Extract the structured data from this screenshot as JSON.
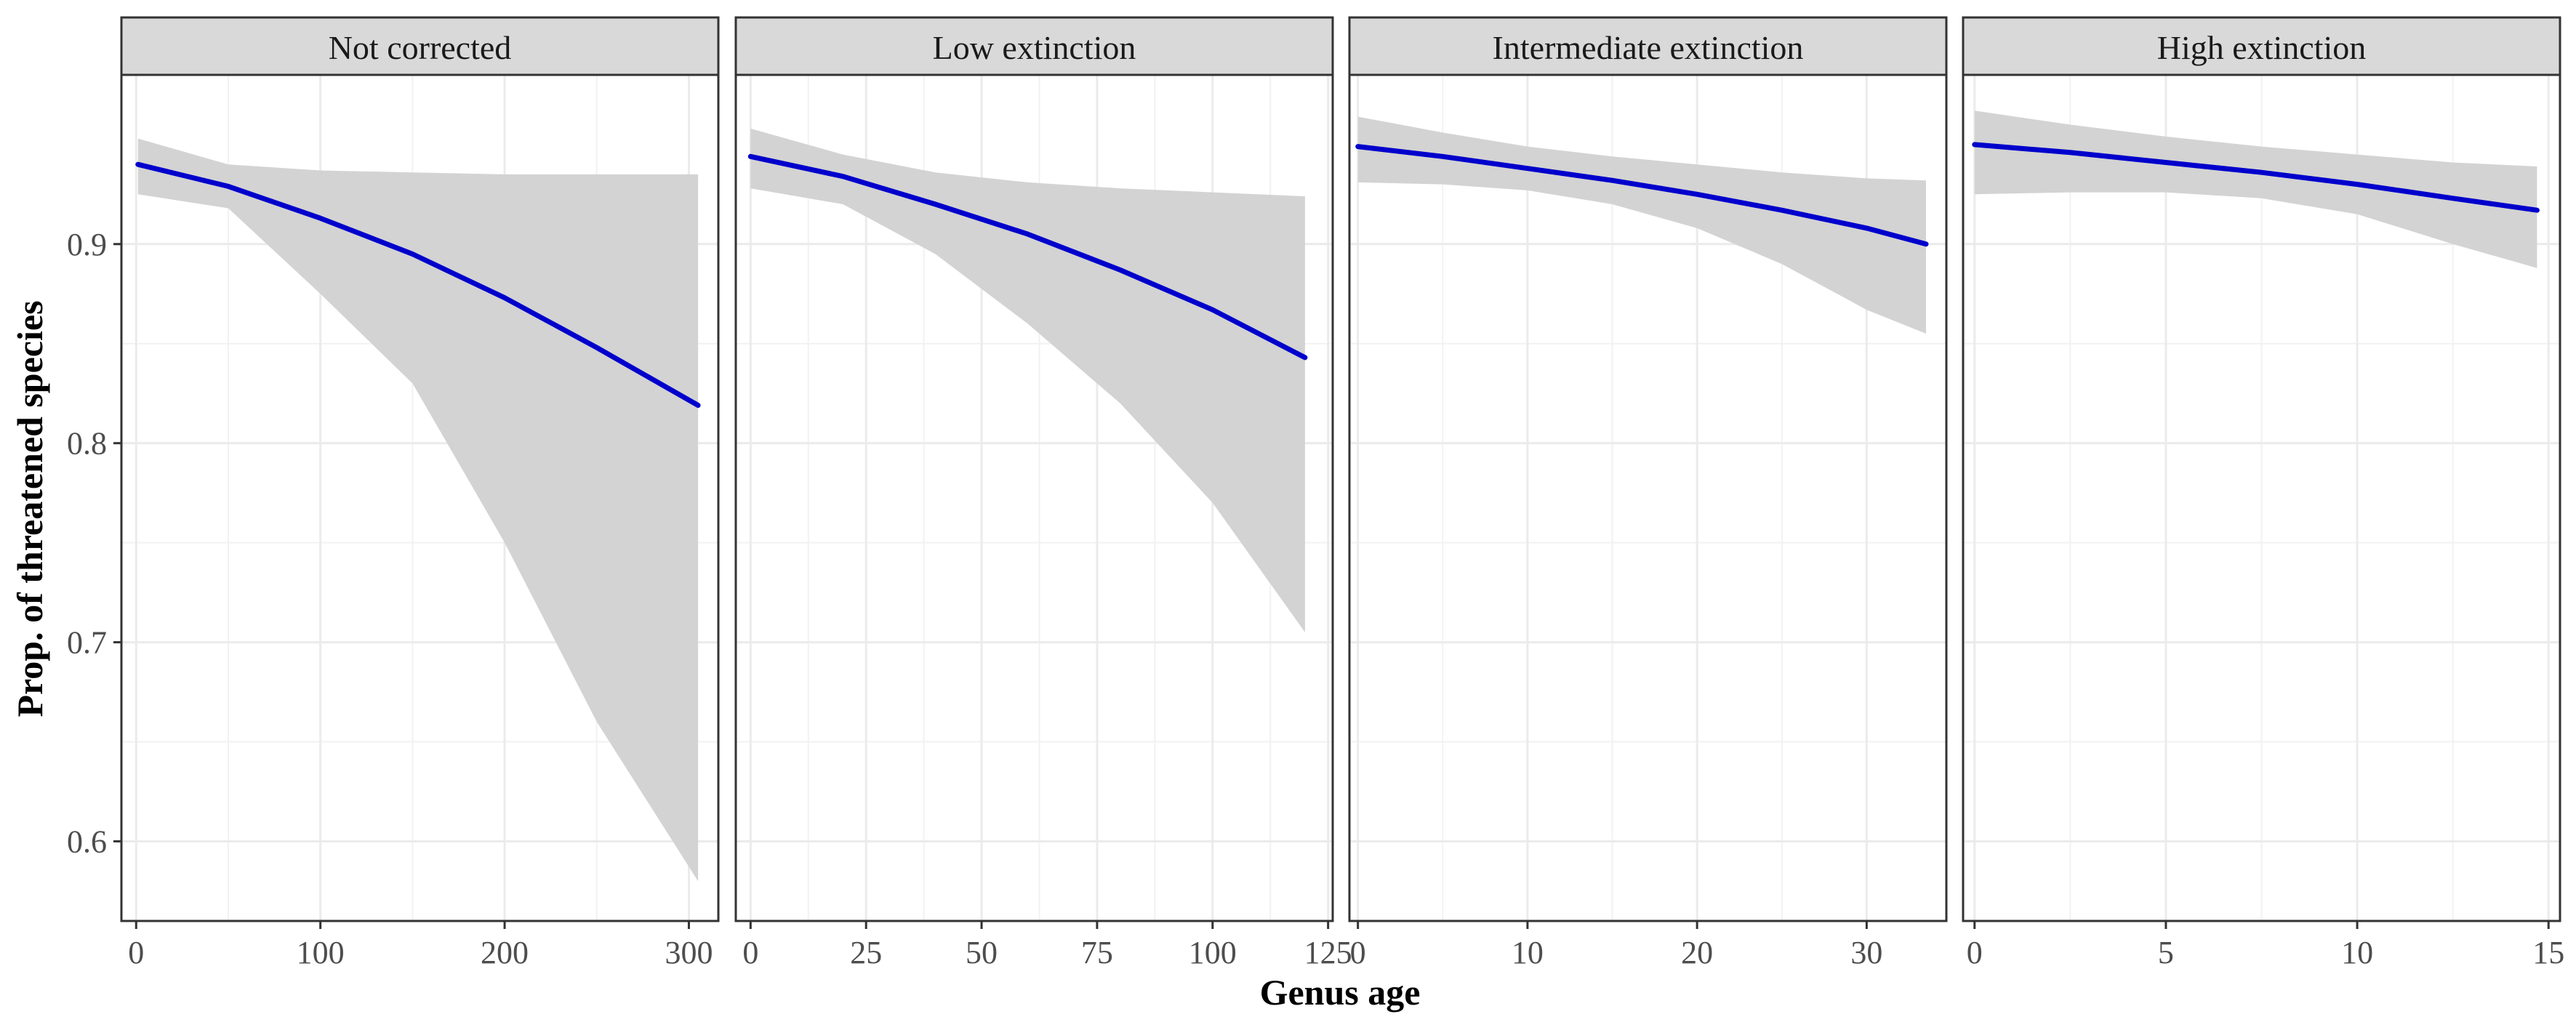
{
  "chart_data": {
    "type": "line",
    "xlabel": "Genus age",
    "ylabel": "Prop. of threatened species",
    "ylim": [
      0.56,
      0.985
    ],
    "y_ticks": [
      0.6,
      0.7,
      0.8,
      0.9
    ],
    "y_tick_labels": [
      "0.6",
      "0.7",
      "0.8",
      "0.9"
    ],
    "grid": true,
    "line_color": "#0000cc",
    "band_color": "#d3d3d3",
    "panels": [
      {
        "title": "Not corrected",
        "xlim": [
          -8,
          316
        ],
        "x_ticks": [
          0,
          100,
          200,
          300
        ],
        "x_tick_labels": [
          "0",
          "100",
          "200",
          "300"
        ],
        "x": [
          1,
          50,
          100,
          150,
          200,
          250,
          305
        ],
        "y": [
          0.94,
          0.929,
          0.913,
          0.895,
          0.873,
          0.848,
          0.819
        ],
        "lower": [
          0.925,
          0.918,
          0.875,
          0.83,
          0.75,
          0.66,
          0.58
        ],
        "upper": [
          0.953,
          0.94,
          0.937,
          0.936,
          0.935,
          0.935,
          0.935
        ]
      },
      {
        "title": "Low extinction",
        "xlim": [
          -3.2,
          126
        ],
        "x_ticks": [
          0,
          25,
          50,
          75,
          100,
          125
        ],
        "x_tick_labels": [
          "0",
          "25",
          "50",
          "75",
          "100",
          "125"
        ],
        "x": [
          0,
          20,
          40,
          60,
          80,
          100,
          120
        ],
        "y": [
          0.944,
          0.934,
          0.92,
          0.905,
          0.887,
          0.867,
          0.843
        ],
        "lower": [
          0.928,
          0.92,
          0.895,
          0.86,
          0.82,
          0.77,
          0.705
        ],
        "upper": [
          0.958,
          0.945,
          0.936,
          0.931,
          0.928,
          0.926,
          0.924
        ]
      },
      {
        "title": "Intermediate extinction",
        "xlim": [
          -0.5,
          34.7
        ],
        "x_ticks": [
          0,
          10,
          20,
          30
        ],
        "x_tick_labels": [
          "0",
          "10",
          "20",
          "30"
        ],
        "x": [
          0,
          5,
          10,
          15,
          20,
          25,
          30,
          33.5
        ],
        "y": [
          0.949,
          0.944,
          0.938,
          0.932,
          0.925,
          0.917,
          0.908,
          0.9
        ],
        "lower": [
          0.931,
          0.93,
          0.927,
          0.92,
          0.908,
          0.89,
          0.867,
          0.855
        ],
        "upper": [
          0.964,
          0.956,
          0.949,
          0.944,
          0.94,
          0.936,
          0.933,
          0.932
        ]
      },
      {
        "title": "High extinction",
        "xlim": [
          -0.3,
          15.3
        ],
        "x_ticks": [
          0,
          5,
          10,
          15
        ],
        "x_tick_labels": [
          "0",
          "5",
          "10",
          "15"
        ],
        "x": [
          0,
          2.5,
          5,
          7.5,
          10,
          12.5,
          14.7
        ],
        "y": [
          0.95,
          0.946,
          0.941,
          0.936,
          0.93,
          0.923,
          0.917
        ],
        "lower": [
          0.925,
          0.926,
          0.926,
          0.923,
          0.915,
          0.9,
          0.888
        ],
        "upper": [
          0.967,
          0.96,
          0.954,
          0.949,
          0.945,
          0.941,
          0.939
        ]
      }
    ]
  }
}
